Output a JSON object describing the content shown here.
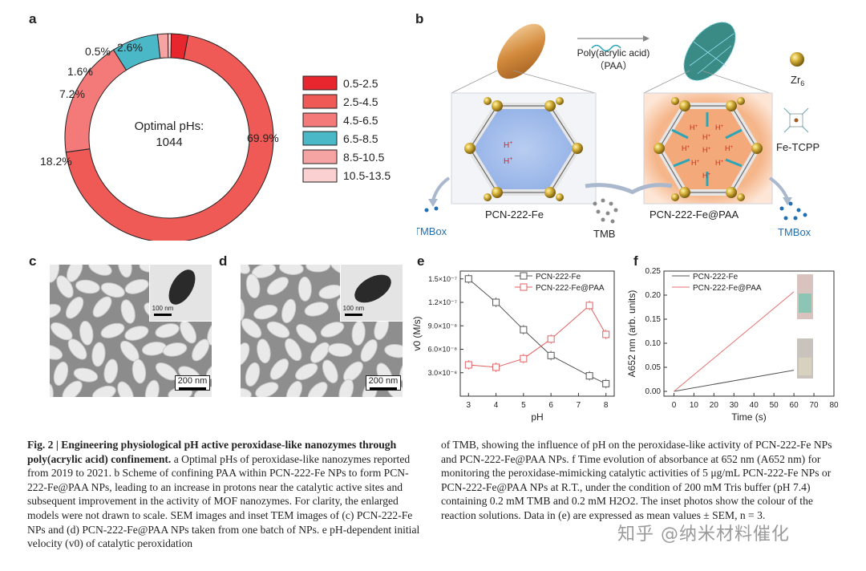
{
  "figure": {
    "panel_letters": {
      "a": "a",
      "b": "b",
      "c": "c",
      "d": "d",
      "e": "e",
      "f": "f"
    }
  },
  "panel_a": {
    "center_label_line1": "Optimal pHs:",
    "center_label_line2": "1044",
    "colors": [
      "#e8262d",
      "#ef5a57",
      "#f47a7a",
      "#4bb8c8",
      "#f5a3a3",
      "#fbd0d0"
    ],
    "chart_data": {
      "type": "pie",
      "title": "",
      "categories": [
        "0.5-2.5",
        "2.5-4.5",
        "4.5-6.5",
        "6.5-8.5",
        "8.5-10.5",
        "10.5-13.5"
      ],
      "values": [
        2.6,
        69.9,
        18.2,
        7.2,
        1.6,
        0.5
      ],
      "value_labels": [
        "2.6%",
        "69.9%",
        "18.2%",
        "7.2%",
        "1.6%",
        "0.5%"
      ],
      "legend_position": "right",
      "donut": true
    }
  },
  "panel_b": {
    "arrow_label_line1": "Poly(acrylic acid)",
    "arrow_label_line2": "（PAA）",
    "left_name": "PCN-222-Fe",
    "right_name": "PCN-222-Fe@PAA",
    "tmb": "TMB",
    "tmbox_left": "TMBox",
    "tmbox_right": "TMBox",
    "zr_label": "Zr",
    "zr_sub": "6",
    "tcpp_label": "Fe-TCPP",
    "proton": "H",
    "proton_sup": "+"
  },
  "panel_c": {
    "scale_main": "200 nm",
    "scale_inset": "100 nm"
  },
  "panel_d": {
    "scale_main": "200 nm",
    "scale_inset": "100 nm"
  },
  "panel_e": {
    "chart_data": {
      "type": "line",
      "xlabel": "pH",
      "ylabel": "v0 (M/s)",
      "xlim": [
        2.7,
        8.3
      ],
      "ylim": [
        0,
        1.6e-07
      ],
      "x_ticks": [
        "3",
        "4",
        "5",
        "6",
        "7",
        "8"
      ],
      "y_ticks": [
        "3.0×10⁻⁸",
        "6.0×10⁻⁸",
        "9.0×10⁻⁸",
        "1.2×10⁻⁷",
        "1.5×10⁻⁷"
      ],
      "series": [
        {
          "name": "PCN-222-Fe",
          "color": "#555555",
          "x": [
            3,
            4,
            5,
            6,
            7.4,
            8
          ],
          "y": [
            1.5e-07,
            1.2e-07,
            8.5e-08,
            5.2e-08,
            2.6e-08,
            1.6e-08
          ]
        },
        {
          "name": "PCN-222-Fe@PAA",
          "color": "#e06060",
          "x": [
            3,
            4,
            5,
            6,
            7.4,
            8
          ],
          "y": [
            4e-08,
            3.7e-08,
            4.8e-08,
            7.3e-08,
            1.16e-07,
            7.9e-08
          ]
        }
      ],
      "legend_position": "top-right"
    }
  },
  "panel_f": {
    "chart_data": {
      "type": "line",
      "xlabel": "Time (s)",
      "ylabel": "A652 nm (arb. units)",
      "xlim": [
        -5,
        80
      ],
      "ylim": [
        -0.01,
        0.25
      ],
      "x_ticks": [
        "0",
        "10",
        "20",
        "30",
        "40",
        "50",
        "60",
        "70",
        "80"
      ],
      "y_ticks": [
        "0.00",
        "0.05",
        "0.10",
        "0.15",
        "0.20",
        "0.25"
      ],
      "series": [
        {
          "name": "PCN-222-Fe",
          "color": "#555555",
          "x": [
            0,
            60
          ],
          "y": [
            0.0,
            0.044
          ]
        },
        {
          "name": "PCN-222-Fe@PAA",
          "color": "#e87070",
          "x": [
            0,
            60
          ],
          "y": [
            0.0,
            0.207
          ]
        }
      ],
      "legend_position": "top-left"
    }
  },
  "caption": {
    "left_bold": "Fig. 2 | Engineering physiological pH active peroxidase-like nanozymes through poly(acrylic acid) confinement.",
    "left_rest": " a Optimal pHs of peroxidase-like nanozymes reported from 2019 to 2021. b Scheme of confining PAA within PCN-222-Fe NPs to form PCN-222-Fe@PAA NPs, leading to an increase in protons near the catalytic active sites and subsequent improvement in the activity of MOF nanozymes. For clarity, the enlarged models were not drawn to scale. SEM images and inset TEM images of (c) PCN-222-Fe NPs and (d) PCN-222-Fe@PAA NPs taken from one batch of NPs. e pH-dependent initial velocity (v0) of catalytic peroxidation",
    "right": "of TMB, showing the influence of pH on the peroxidase-like activity of PCN-222-Fe NPs and PCN-222-Fe@PAA NPs. f Time evolution of absorbance at 652 nm (A652 nm) for monitoring the peroxidase-mimicking catalytic activities of 5 μg/mL PCN-222-Fe NPs or PCN-222-Fe@PAA NPs at R.T., under the condition of 200 mM Tris buffer (pH 7.4) containing 0.2 mM TMB and 0.2 mM H2O2. The inset photos show the colour of the reaction solutions. Data in (e) are expressed as mean values ± SEM, n = 3."
  },
  "watermark": "知乎 @纳米材料催化"
}
